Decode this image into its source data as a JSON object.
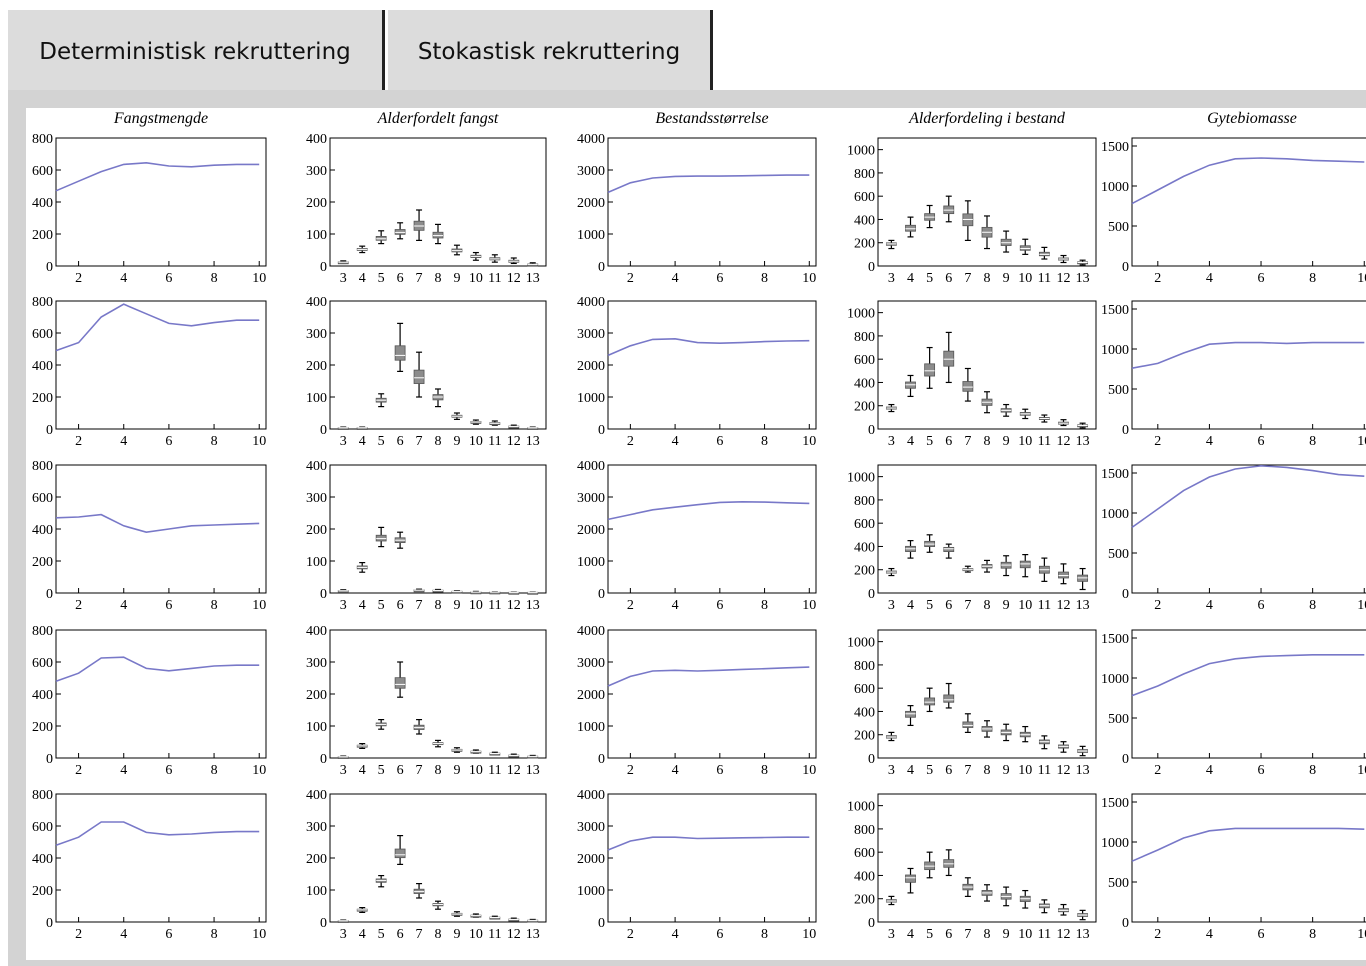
{
  "tabs": [
    {
      "label": "Deterministisk rekruttering",
      "active": true
    },
    {
      "label": "Stokastisk rekruttering",
      "active": false
    }
  ],
  "colors": {
    "line": "#7878c8",
    "box_fill": "#8c8c8c",
    "axis": "#000000",
    "panel_bg": "#d3d3d3"
  },
  "chart_data": {
    "type": "grid",
    "titles": [
      "Fangstmengde",
      "Alderfordelt fangst",
      "Bestandsstørrelse",
      "Alderfordeling i bestand",
      "Gytebiomasse"
    ],
    "line_x_ticks": [
      "2",
      "4",
      "6",
      "8",
      "10"
    ],
    "age_ticks": [
      "3",
      "4",
      "5",
      "6",
      "7",
      "8",
      "9",
      "10",
      "11",
      "12",
      "13"
    ],
    "ylims": [
      [
        0,
        800
      ],
      [
        0,
        400
      ],
      [
        0,
        4000
      ],
      [
        0,
        1100
      ],
      [
        0,
        1600
      ]
    ],
    "y_ticks": [
      [
        "0",
        "200",
        "400",
        "600",
        "800"
      ],
      [
        "0",
        "100",
        "200",
        "300",
        "400"
      ],
      [
        "0",
        "1000",
        "2000",
        "3000",
        "4000"
      ],
      [
        "0",
        "200",
        "400",
        "600",
        "800",
        "1000"
      ],
      [
        "0",
        "500",
        "1000",
        "1500"
      ]
    ],
    "rows": [
      {
        "fangstmengde": [
          470,
          530,
          590,
          635,
          645,
          625,
          620,
          630,
          635,
          635
        ],
        "alderfordelt_fangst": [
          [
            8,
            12,
            16
          ],
          [
            42,
            52,
            62
          ],
          [
            70,
            85,
            110
          ],
          [
            85,
            105,
            135
          ],
          [
            80,
            125,
            175
          ],
          [
            70,
            95,
            130
          ],
          [
            35,
            48,
            65
          ],
          [
            18,
            30,
            42
          ],
          [
            12,
            22,
            35
          ],
          [
            8,
            15,
            25
          ],
          [
            2,
            5,
            10
          ]
        ],
        "bestandsstorrelse": [
          2300,
          2600,
          2750,
          2800,
          2810,
          2810,
          2820,
          2830,
          2840,
          2840
        ],
        "alderfordeling_bestand": [
          [
            150,
            190,
            220
          ],
          [
            250,
            320,
            420
          ],
          [
            330,
            420,
            520
          ],
          [
            380,
            480,
            600
          ],
          [
            220,
            400,
            560
          ],
          [
            150,
            290,
            430
          ],
          [
            120,
            200,
            300
          ],
          [
            100,
            150,
            230
          ],
          [
            60,
            100,
            160
          ],
          [
            30,
            60,
            90
          ],
          [
            10,
            30,
            50
          ]
        ],
        "gytebiomasse": [
          780,
          950,
          1120,
          1260,
          1340,
          1350,
          1340,
          1320,
          1310,
          1300
        ]
      },
      {
        "fangstmengde": [
          490,
          540,
          700,
          780,
          720,
          660,
          645,
          665,
          680,
          680
        ],
        "alderfordelt_fangst": [
          [
            2,
            4,
            6
          ],
          [
            2,
            4,
            6
          ],
          [
            70,
            90,
            110
          ],
          [
            180,
            230,
            330
          ],
          [
            100,
            160,
            240
          ],
          [
            70,
            100,
            125
          ],
          [
            30,
            40,
            50
          ],
          [
            15,
            22,
            28
          ],
          [
            12,
            18,
            25
          ],
          [
            5,
            8,
            12
          ],
          [
            2,
            4,
            6
          ]
        ],
        "bestandsstorrelse": [
          2300,
          2600,
          2800,
          2820,
          2700,
          2680,
          2700,
          2730,
          2750,
          2760
        ],
        "alderfordeling_bestand": [
          [
            150,
            180,
            210
          ],
          [
            280,
            380,
            460
          ],
          [
            350,
            500,
            700
          ],
          [
            400,
            600,
            830
          ],
          [
            240,
            360,
            520
          ],
          [
            140,
            230,
            320
          ],
          [
            110,
            160,
            210
          ],
          [
            90,
            130,
            170
          ],
          [
            60,
            90,
            120
          ],
          [
            30,
            50,
            80
          ],
          [
            10,
            30,
            50
          ]
        ],
        "gytebiomasse": [
          760,
          820,
          950,
          1060,
          1080,
          1080,
          1070,
          1080,
          1080,
          1080
        ]
      },
      {
        "fangstmengde": [
          470,
          475,
          490,
          420,
          380,
          400,
          420,
          425,
          430,
          435
        ],
        "alderfordelt_fangst": [
          [
            4,
            7,
            10
          ],
          [
            65,
            80,
            95
          ],
          [
            145,
            170,
            205
          ],
          [
            140,
            165,
            190
          ],
          [
            6,
            9,
            12
          ],
          [
            5,
            8,
            11
          ],
          [
            3,
            5,
            7
          ],
          [
            2,
            3,
            5
          ],
          [
            2,
            3,
            4
          ],
          [
            1,
            2,
            3
          ],
          [
            1,
            2,
            3
          ]
        ],
        "bestandsstorrelse": [
          2300,
          2450,
          2600,
          2680,
          2760,
          2830,
          2850,
          2840,
          2820,
          2800
        ],
        "alderfordeling_bestand": [
          [
            150,
            180,
            210
          ],
          [
            300,
            380,
            450
          ],
          [
            350,
            420,
            500
          ],
          [
            300,
            380,
            420
          ],
          [
            180,
            200,
            230
          ],
          [
            180,
            230,
            280
          ],
          [
            150,
            240,
            320
          ],
          [
            140,
            250,
            330
          ],
          [
            100,
            200,
            300
          ],
          [
            80,
            150,
            250
          ],
          [
            30,
            130,
            210
          ]
        ],
        "gytebiomasse": [
          820,
          1050,
          1280,
          1450,
          1550,
          1590,
          1570,
          1530,
          1480,
          1460
        ]
      },
      {
        "fangstmengde": [
          480,
          530,
          625,
          630,
          560,
          545,
          560,
          575,
          580,
          580
        ],
        "alderfordelt_fangst": [
          [
            2,
            4,
            6
          ],
          [
            30,
            38,
            45
          ],
          [
            90,
            105,
            120
          ],
          [
            190,
            230,
            300
          ],
          [
            75,
            95,
            120
          ],
          [
            35,
            45,
            55
          ],
          [
            18,
            25,
            32
          ],
          [
            15,
            20,
            25
          ],
          [
            10,
            14,
            18
          ],
          [
            5,
            8,
            12
          ],
          [
            2,
            5,
            8
          ]
        ],
        "bestandsstorrelse": [
          2250,
          2550,
          2720,
          2740,
          2720,
          2740,
          2770,
          2790,
          2820,
          2840
        ],
        "alderfordeling_bestand": [
          [
            150,
            180,
            220
          ],
          [
            280,
            380,
            450
          ],
          [
            400,
            480,
            600
          ],
          [
            430,
            500,
            640
          ],
          [
            220,
            280,
            380
          ],
          [
            180,
            250,
            320
          ],
          [
            150,
            220,
            290
          ],
          [
            140,
            200,
            270
          ],
          [
            80,
            140,
            190
          ],
          [
            50,
            100,
            140
          ],
          [
            20,
            60,
            100
          ]
        ],
        "gytebiomasse": [
          780,
          900,
          1050,
          1180,
          1240,
          1270,
          1280,
          1290,
          1290,
          1290
        ]
      },
      {
        "fangstmengde": [
          480,
          530,
          625,
          625,
          560,
          545,
          550,
          560,
          565,
          565
        ],
        "alderfordelt_fangst": [
          [
            2,
            4,
            6
          ],
          [
            30,
            38,
            45
          ],
          [
            110,
            130,
            145
          ],
          [
            180,
            210,
            270
          ],
          [
            75,
            95,
            120
          ],
          [
            40,
            55,
            65
          ],
          [
            18,
            25,
            32
          ],
          [
            15,
            20,
            25
          ],
          [
            10,
            14,
            18
          ],
          [
            5,
            8,
            12
          ],
          [
            2,
            5,
            8
          ]
        ],
        "bestandsstorrelse": [
          2250,
          2530,
          2650,
          2650,
          2610,
          2620,
          2630,
          2640,
          2650,
          2650
        ],
        "alderfordeling_bestand": [
          [
            150,
            180,
            220
          ],
          [
            250,
            380,
            460
          ],
          [
            380,
            480,
            600
          ],
          [
            400,
            500,
            620
          ],
          [
            220,
            300,
            380
          ],
          [
            180,
            250,
            320
          ],
          [
            140,
            220,
            300
          ],
          [
            120,
            200,
            270
          ],
          [
            80,
            140,
            190
          ],
          [
            60,
            100,
            150
          ],
          [
            20,
            60,
            100
          ]
        ],
        "gytebiomasse": [
          760,
          900,
          1050,
          1140,
          1170,
          1170,
          1170,
          1170,
          1170,
          1160
        ]
      }
    ]
  }
}
